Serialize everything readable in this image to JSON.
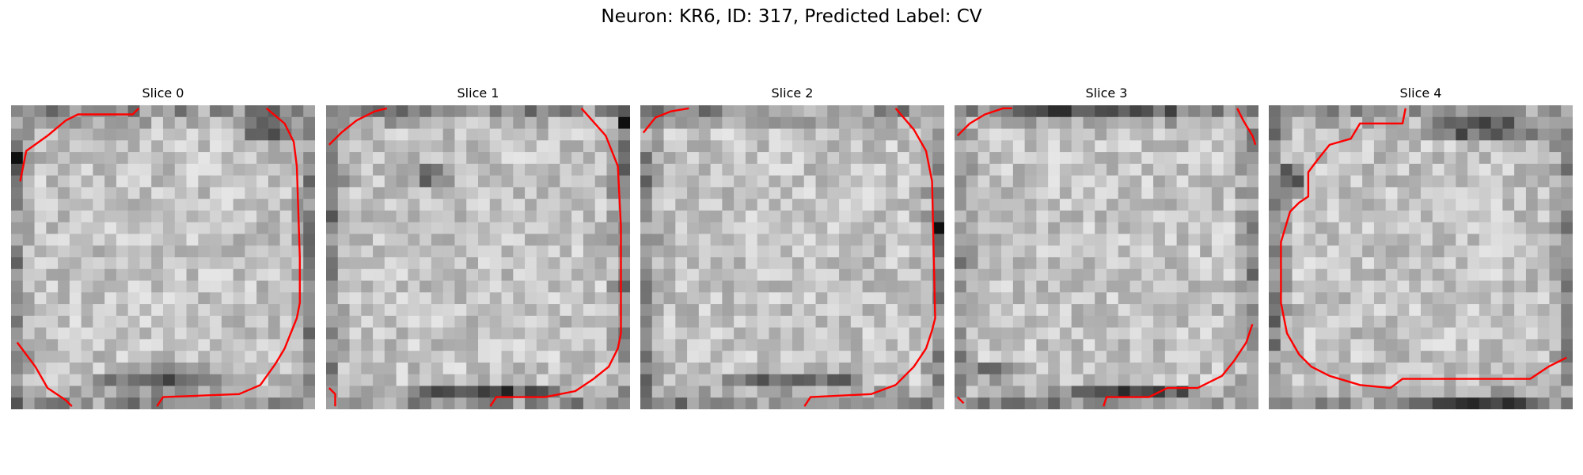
{
  "figure": {
    "title": "Neuron: KR6, ID: 317, Predicted Label: CV"
  },
  "slices": [
    {
      "title": "Slice 0",
      "seed": 11,
      "dark_regions": [
        [
          0.5,
          0.9,
          0.55,
          0.1
        ],
        [
          0.85,
          0.08,
          0.2,
          0.14
        ],
        [
          0.03,
          0.18,
          0.04,
          0.12
        ]
      ],
      "contours": [
        [
          [
            0.03,
            0.25
          ],
          [
            0.05,
            0.15
          ],
          [
            0.12,
            0.1
          ],
          [
            0.18,
            0.05
          ],
          [
            0.22,
            0.03
          ],
          [
            0.4,
            0.03
          ],
          [
            0.42,
            0.01
          ]
        ],
        [
          [
            0.84,
            0.01
          ],
          [
            0.9,
            0.06
          ],
          [
            0.93,
            0.12
          ],
          [
            0.94,
            0.2
          ],
          [
            0.95,
            0.5
          ],
          [
            0.95,
            0.65
          ],
          [
            0.94,
            0.7
          ],
          [
            0.92,
            0.75
          ],
          [
            0.9,
            0.8
          ],
          [
            0.87,
            0.85
          ],
          [
            0.82,
            0.92
          ],
          [
            0.75,
            0.95
          ],
          [
            0.5,
            0.96
          ],
          [
            0.48,
            0.99
          ]
        ],
        [
          [
            0.02,
            0.78
          ],
          [
            0.05,
            0.82
          ],
          [
            0.08,
            0.86
          ],
          [
            0.12,
            0.93
          ],
          [
            0.18,
            0.97
          ],
          [
            0.2,
            0.99
          ]
        ]
      ]
    },
    {
      "title": "Slice 1",
      "seed": 23,
      "dark_regions": [
        [
          0.33,
          0.23,
          0.2,
          0.07
        ],
        [
          0.5,
          0.95,
          0.6,
          0.06
        ],
        [
          0.98,
          0.05,
          0.04,
          0.08
        ]
      ],
      "contours": [
        [
          [
            0.01,
            0.13
          ],
          [
            0.05,
            0.09
          ],
          [
            0.1,
            0.05
          ],
          [
            0.16,
            0.02
          ],
          [
            0.2,
            0.01
          ]
        ],
        [
          [
            0.84,
            0.01
          ],
          [
            0.92,
            0.1
          ],
          [
            0.96,
            0.2
          ],
          [
            0.97,
            0.4
          ],
          [
            0.97,
            0.75
          ],
          [
            0.96,
            0.8
          ],
          [
            0.93,
            0.86
          ],
          [
            0.88,
            0.9
          ],
          [
            0.82,
            0.94
          ],
          [
            0.72,
            0.96
          ],
          [
            0.56,
            0.96
          ],
          [
            0.54,
            0.99
          ]
        ],
        [
          [
            0.01,
            0.93
          ],
          [
            0.03,
            0.95
          ],
          [
            0.03,
            0.99
          ]
        ]
      ]
    },
    {
      "title": "Slice 2",
      "seed": 37,
      "dark_regions": [
        [
          0.5,
          0.91,
          0.55,
          0.06
        ],
        [
          0.06,
          0.04,
          0.08,
          0.06
        ],
        [
          0.98,
          0.4,
          0.04,
          0.1
        ]
      ],
      "contours": [
        [
          [
            0.01,
            0.09
          ],
          [
            0.05,
            0.04
          ],
          [
            0.1,
            0.02
          ],
          [
            0.16,
            0.01
          ]
        ],
        [
          [
            0.84,
            0.01
          ],
          [
            0.9,
            0.08
          ],
          [
            0.94,
            0.15
          ],
          [
            0.96,
            0.25
          ],
          [
            0.97,
            0.7
          ],
          [
            0.96,
            0.74
          ],
          [
            0.94,
            0.8
          ],
          [
            0.9,
            0.86
          ],
          [
            0.84,
            0.92
          ],
          [
            0.76,
            0.95
          ],
          [
            0.56,
            0.96
          ],
          [
            0.54,
            0.99
          ]
        ]
      ]
    },
    {
      "title": "Slice 3",
      "seed": 53,
      "dark_regions": [
        [
          0.55,
          0.95,
          0.6,
          0.06
        ],
        [
          0.15,
          0.88,
          0.25,
          0.06
        ],
        [
          0.5,
          0.03,
          0.8,
          0.04
        ]
      ],
      "contours": [
        [
          [
            0.01,
            0.1
          ],
          [
            0.05,
            0.06
          ],
          [
            0.1,
            0.03
          ],
          [
            0.16,
            0.01
          ],
          [
            0.19,
            0.01
          ]
        ],
        [
          [
            0.93,
            0.01
          ],
          [
            0.95,
            0.05
          ],
          [
            0.98,
            0.1
          ],
          [
            0.99,
            0.13
          ]
        ],
        [
          [
            0.98,
            0.72
          ],
          [
            0.96,
            0.78
          ],
          [
            0.92,
            0.84
          ],
          [
            0.88,
            0.89
          ],
          [
            0.8,
            0.93
          ],
          [
            0.7,
            0.93
          ],
          [
            0.64,
            0.96
          ],
          [
            0.5,
            0.96
          ],
          [
            0.49,
            0.99
          ]
        ],
        [
          [
            0.01,
            0.96
          ],
          [
            0.03,
            0.98
          ]
        ]
      ]
    },
    {
      "title": "Slice 4",
      "seed": 71,
      "dark_regions": [
        [
          0.7,
          0.08,
          0.55,
          0.08
        ],
        [
          0.08,
          0.25,
          0.08,
          0.15
        ],
        [
          0.7,
          0.97,
          0.6,
          0.04
        ]
      ],
      "contours": [
        [
          [
            0.45,
            0.01
          ],
          [
            0.44,
            0.06
          ],
          [
            0.3,
            0.06
          ],
          [
            0.27,
            0.11
          ],
          [
            0.2,
            0.13
          ],
          [
            0.16,
            0.18
          ],
          [
            0.13,
            0.22
          ],
          [
            0.13,
            0.3
          ],
          [
            0.1,
            0.32
          ],
          [
            0.07,
            0.35
          ],
          [
            0.04,
            0.45
          ],
          [
            0.04,
            0.65
          ],
          [
            0.06,
            0.75
          ],
          [
            0.1,
            0.82
          ],
          [
            0.14,
            0.86
          ],
          [
            0.2,
            0.89
          ],
          [
            0.3,
            0.92
          ],
          [
            0.4,
            0.93
          ],
          [
            0.44,
            0.9
          ],
          [
            0.86,
            0.9
          ],
          [
            0.92,
            0.86
          ],
          [
            0.98,
            0.83
          ]
        ]
      ]
    }
  ],
  "colors": {
    "contour": "#ff0000",
    "colormap": "gray"
  }
}
